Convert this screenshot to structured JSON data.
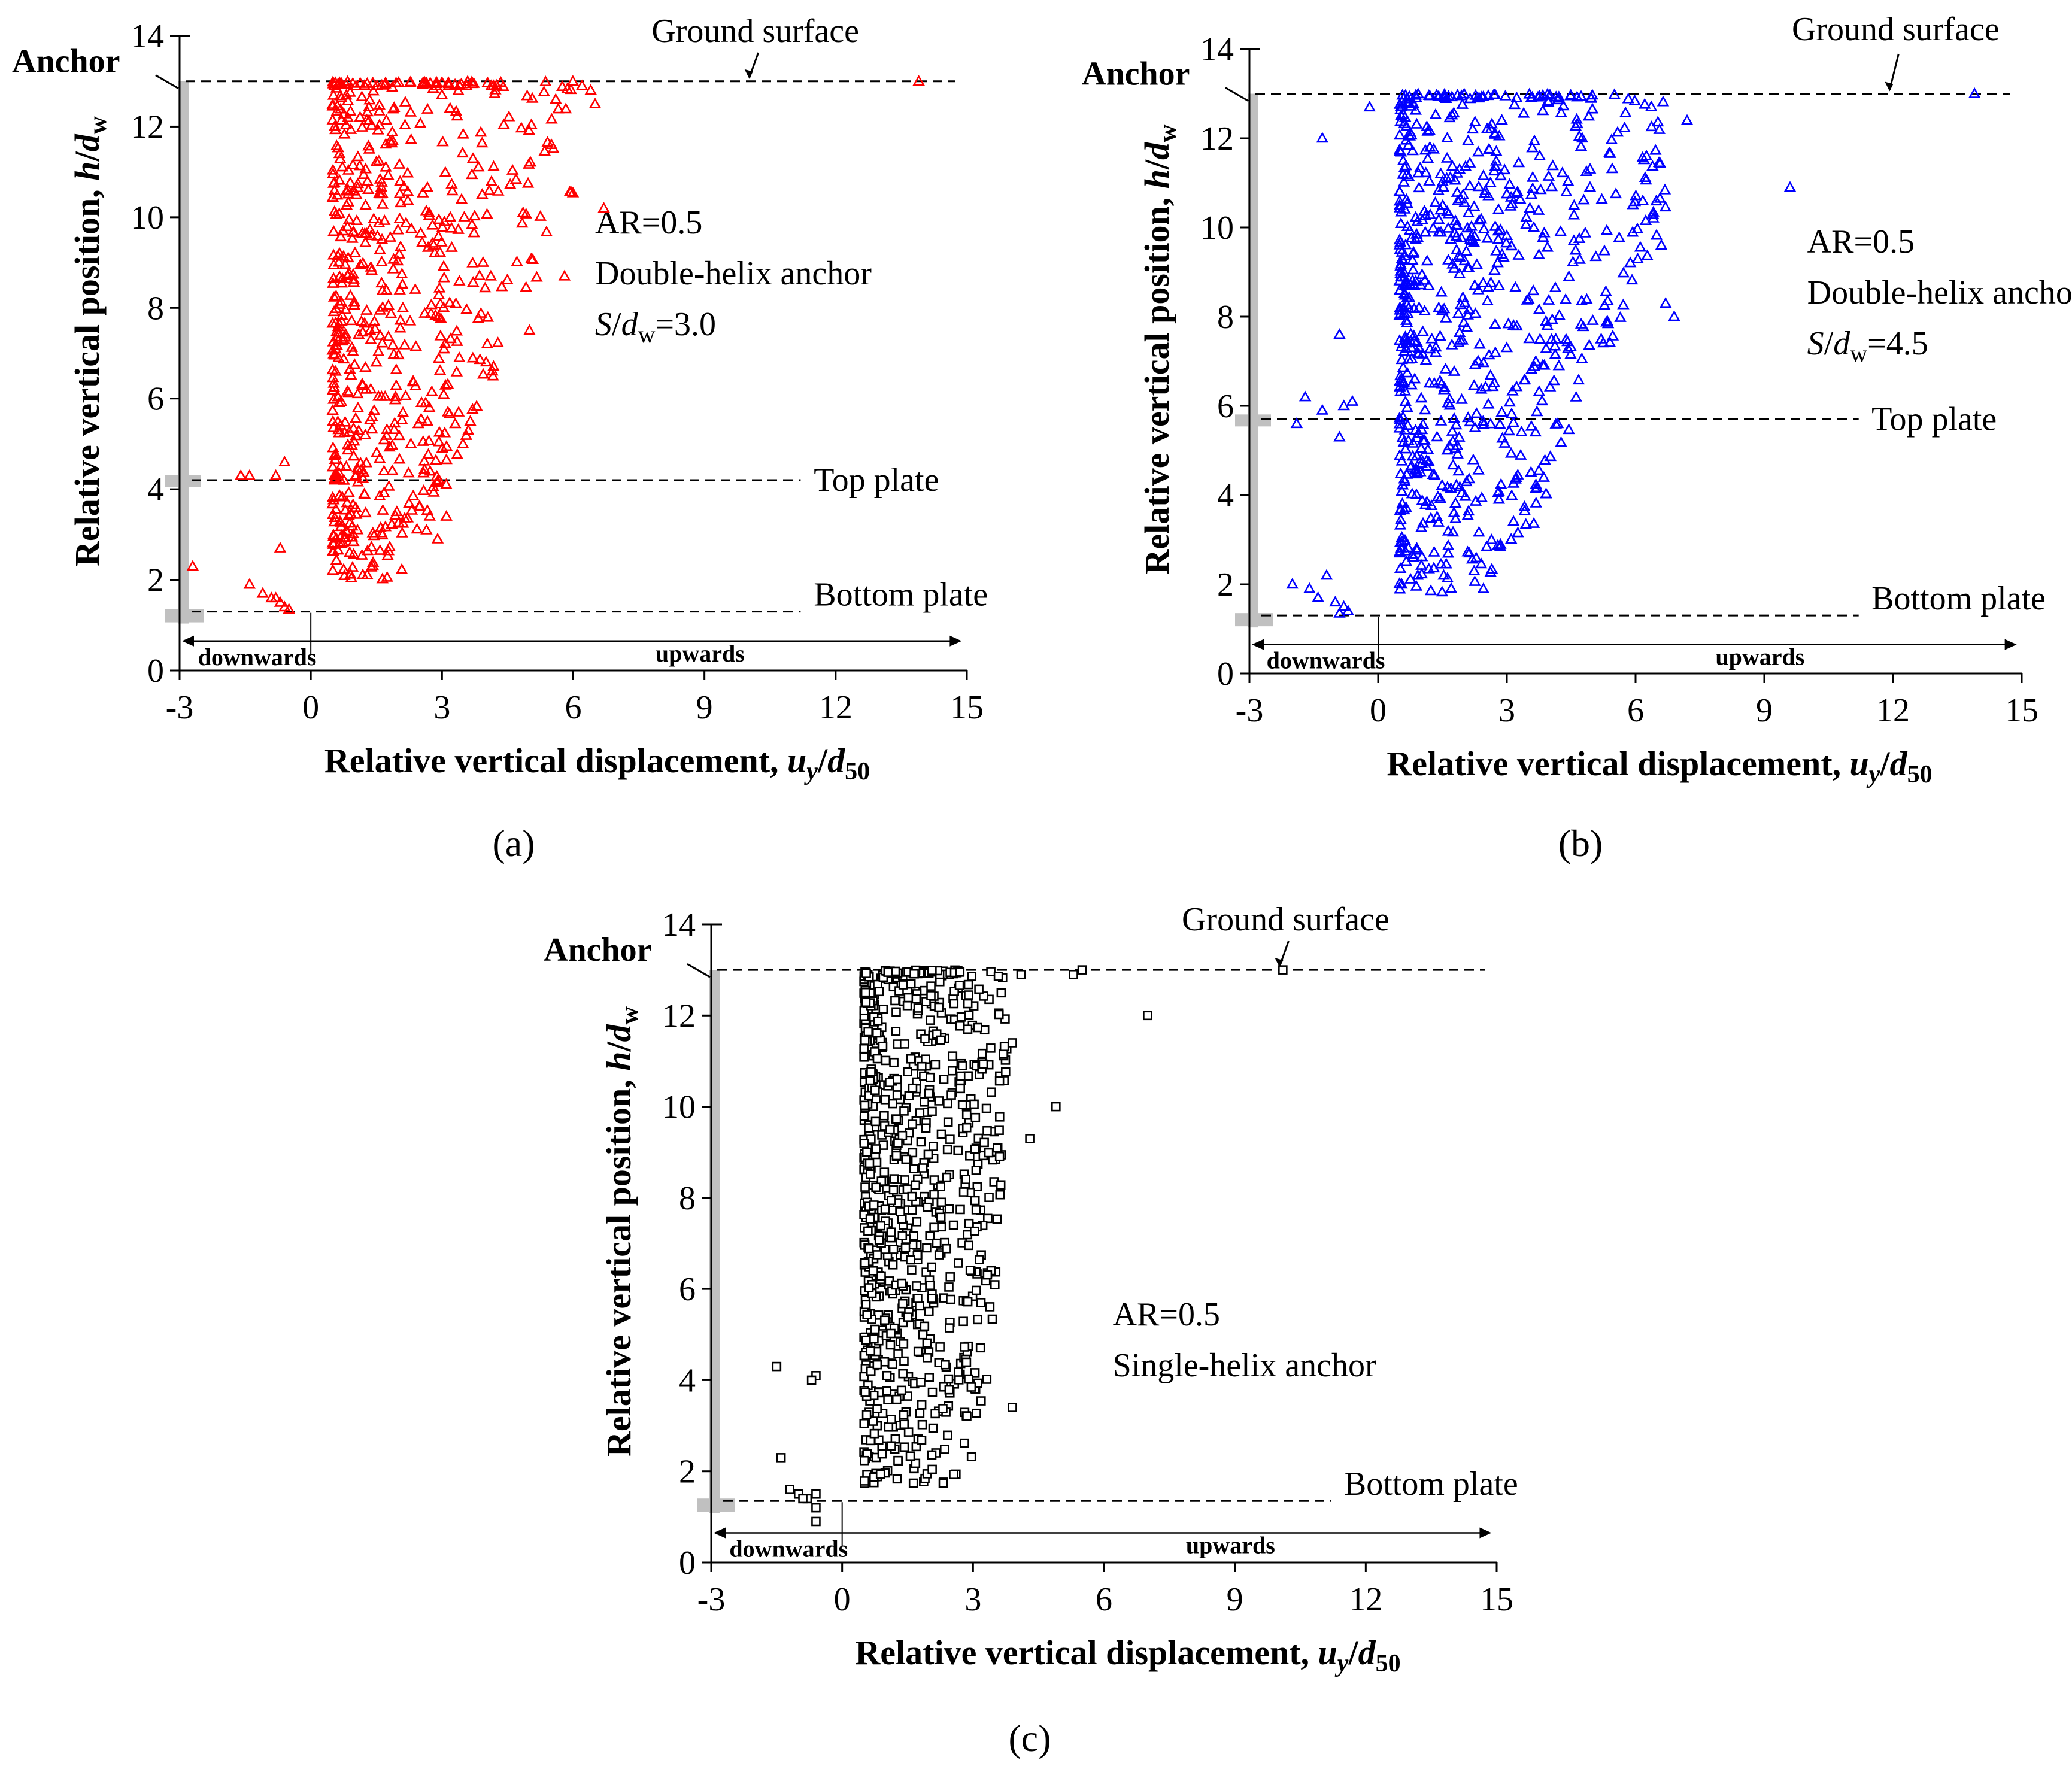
{
  "figure": {
    "panel_labels": [
      "(a)",
      "(b)",
      "(c)"
    ]
  },
  "chart_data": [
    {
      "type": "scatter",
      "panel": "(a)",
      "xlabel": "Relative vertical displacement, u_y/d_50",
      "xlabel_parts": {
        "main": "Relative vertical displacement, ",
        "u": "u",
        "y": "y",
        "slash": "/",
        "d": "d",
        "sub50": "50"
      },
      "ylabel_parts": {
        "main": "Relative vertical position, ",
        "h": "h",
        "slash": "/",
        "d": "d",
        "w": "w"
      },
      "xlim": [
        -3,
        15
      ],
      "ylim": [
        0,
        14
      ],
      "xticks": [
        -3,
        0,
        3,
        6,
        9,
        12,
        15
      ],
      "yticks": [
        0,
        2,
        4,
        6,
        8,
        10,
        12,
        14
      ],
      "marker": "triangle",
      "color": "#ff0000",
      "annotations": {
        "ar": "AR=0.5",
        "anchor_type": "Double-helix anchor",
        "spacing": {
          "s": "S",
          "slash": "/",
          "d": "d",
          "w": "w",
          "value": "=3.0"
        },
        "ground_surface": "Ground surface",
        "top_plate": "Top plate",
        "bottom_plate": "Bottom plate",
        "anchor": "Anchor",
        "downwards": "downwards",
        "upwards": "upwards"
      },
      "ground_surface_y": 13.0,
      "top_plate_y": 4.2,
      "bottom_plate_y": 1.3,
      "cluster": {
        "x_min": 0.5,
        "x_max_bottom": 2.2,
        "x_max_top": 6.0,
        "y_min": 2.0,
        "y_max": 13.0,
        "count": 620
      },
      "points": [
        [
          13.9,
          13.0
        ],
        [
          6.7,
          10.2
        ],
        [
          5.8,
          8.7
        ],
        [
          5.5,
          11.6
        ],
        [
          5.0,
          7.5
        ],
        [
          5.6,
          12.6
        ],
        [
          6.2,
          12.9
        ],
        [
          6.4,
          12.8
        ],
        [
          6.5,
          12.5
        ],
        [
          3.1,
          3.4
        ],
        [
          2.9,
          2.9
        ],
        [
          -2.7,
          2.3
        ],
        [
          -1.6,
          4.3
        ],
        [
          -1.4,
          4.3
        ],
        [
          -0.8,
          4.3
        ],
        [
          -0.6,
          4.6
        ],
        [
          -0.7,
          2.7
        ],
        [
          -1.4,
          1.9
        ],
        [
          -1.1,
          1.7
        ],
        [
          -0.9,
          1.6
        ],
        [
          -0.7,
          1.5
        ],
        [
          -0.6,
          1.4
        ],
        [
          -0.5,
          1.35
        ],
        [
          -0.8,
          1.6
        ]
      ]
    },
    {
      "type": "scatter",
      "panel": "(b)",
      "xlabel": "Relative vertical displacement, u_y/d_50",
      "xlabel_parts": {
        "main": "Relative vertical displacement, ",
        "u": "u",
        "y": "y",
        "slash": "/",
        "d": "d",
        "sub50": "50"
      },
      "ylabel_parts": {
        "main": "Relative vertical position, ",
        "h": "h",
        "slash": "/",
        "d": "d",
        "w": "w"
      },
      "xlim": [
        -3,
        15
      ],
      "ylim": [
        0,
        14
      ],
      "xticks": [
        -3,
        0,
        3,
        6,
        9,
        12,
        15
      ],
      "yticks": [
        0,
        2,
        4,
        6,
        8,
        10,
        12,
        14
      ],
      "marker": "triangle",
      "color": "#0000ff",
      "annotations": {
        "ar": "AR=0.5",
        "anchor_type": "Double-helix anchor",
        "spacing": {
          "s": "S",
          "slash": "/",
          "d": "d",
          "w": "w",
          "value": "=4.5"
        },
        "ground_surface": "Ground surface",
        "top_plate": "Top plate",
        "bottom_plate": "Bottom plate",
        "anchor": "Anchor",
        "downwards": "downwards",
        "upwards": "upwards"
      },
      "ground_surface_y": 13.0,
      "top_plate_y": 5.7,
      "bottom_plate_y": 1.3,
      "cluster": {
        "x_min": 0.5,
        "x_max_bottom": 3.0,
        "x_max_top": 6.8,
        "y_min": 1.8,
        "y_max": 13.0,
        "count": 720
      },
      "points": [
        [
          13.9,
          13.0
        ],
        [
          9.6,
          10.9
        ],
        [
          7.2,
          12.4
        ],
        [
          6.6,
          9.6
        ],
        [
          6.9,
          8.0
        ],
        [
          6.7,
          8.3
        ],
        [
          -0.2,
          12.7
        ],
        [
          -1.3,
          12.0
        ],
        [
          -0.9,
          7.6
        ],
        [
          -1.7,
          6.2
        ],
        [
          -1.9,
          5.6
        ],
        [
          -1.3,
          5.9
        ],
        [
          -0.8,
          6.0
        ],
        [
          -0.6,
          6.1
        ],
        [
          -0.9,
          5.3
        ],
        [
          -2.0,
          2.0
        ],
        [
          -1.6,
          1.9
        ],
        [
          -1.4,
          1.7
        ],
        [
          -1.2,
          2.2
        ],
        [
          -1.0,
          1.6
        ],
        [
          -0.8,
          1.5
        ],
        [
          -0.7,
          1.4
        ],
        [
          -0.9,
          1.35
        ]
      ]
    },
    {
      "type": "scatter",
      "panel": "(c)",
      "xlabel": "Relative vertical displacement, u_y/d_50",
      "xlabel_parts": {
        "main": "Relative vertical displacement, ",
        "u": "u",
        "y": "y",
        "slash": "/",
        "d": "d",
        "sub50": "50"
      },
      "ylabel_parts": {
        "main": "Relative vertical position, ",
        "h": "h",
        "slash": "/",
        "d": "d",
        "w": "w"
      },
      "xlim": [
        -3,
        15
      ],
      "ylim": [
        0,
        14
      ],
      "xticks": [
        -3,
        0,
        3,
        6,
        9,
        12,
        15
      ],
      "yticks": [
        0,
        2,
        4,
        6,
        8,
        10,
        12,
        14
      ],
      "marker": "square",
      "color": "#000000",
      "annotations": {
        "ar": "AR=0.5",
        "anchor_type": "Single-helix anchor",
        "ground_surface": "Ground surface",
        "bottom_plate": "Bottom plate",
        "anchor": "Anchor",
        "downwards": "downwards",
        "upwards": "upwards"
      },
      "ground_surface_y": 13.0,
      "bottom_plate_y": 1.35,
      "cluster": {
        "x_min": 0.5,
        "x_max_bottom": 3.2,
        "x_max_top": 3.8,
        "y_min": 1.7,
        "y_max": 13.0,
        "count": 800
      },
      "points": [
        [
          10.1,
          13.0
        ],
        [
          5.5,
          13.0
        ],
        [
          5.3,
          12.9
        ],
        [
          4.1,
          12.9
        ],
        [
          7.0,
          12.0
        ],
        [
          4.9,
          10.0
        ],
        [
          4.3,
          9.3
        ],
        [
          3.9,
          11.4
        ],
        [
          3.9,
          3.4
        ],
        [
          -1.5,
          4.3
        ],
        [
          -0.6,
          4.1
        ],
        [
          -0.7,
          4.0
        ],
        [
          -1.4,
          2.3
        ],
        [
          -1.2,
          1.6
        ],
        [
          -1.0,
          1.5
        ],
        [
          -0.8,
          1.4
        ],
        [
          -0.6,
          1.5
        ],
        [
          -0.6,
          1.2
        ],
        [
          -0.6,
          0.9
        ],
        [
          -0.9,
          1.4
        ]
      ]
    }
  ]
}
